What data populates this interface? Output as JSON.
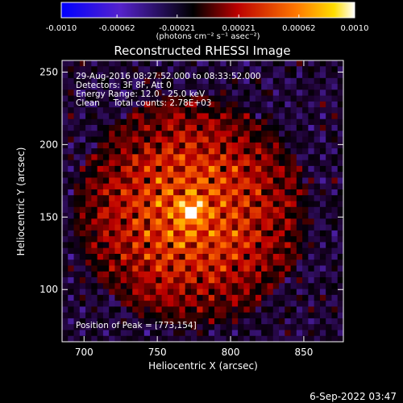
{
  "chart_data": {
    "type": "heatmap",
    "title": "Reconstructed RHESSI Image",
    "xlabel": "Heliocentric X (arcsec)",
    "ylabel": "Heliocentric Y (arcsec)",
    "xlim": [
      685,
      877
    ],
    "ylim": [
      64,
      258
    ],
    "x_ticks": [
      "700",
      "750",
      "800",
      "850"
    ],
    "x_tick_values": [
      700,
      750,
      800,
      850
    ],
    "y_ticks": [
      "100",
      "150",
      "200",
      "250"
    ],
    "y_tick_values": [
      100,
      150,
      200,
      250
    ],
    "colorbar": {
      "range": [
        -0.001,
        0.001
      ],
      "tick_labels": [
        "-0.0010",
        "-0.00062",
        "-0.00021",
        "0.00021",
        "0.00062",
        "0.0010"
      ],
      "tick_values": [
        -0.001,
        -0.00062,
        -0.00021,
        0.00021,
        0.00062,
        0.001
      ],
      "unit_label": "(photons cm⁻² s⁻¹ asec⁻²)",
      "colors": [
        "#0000ff",
        "#6633cc",
        "#000000",
        "#cc0000",
        "#ff6600",
        "#ffdd00",
        "#ffffff"
      ]
    },
    "annotations": [
      "29-Aug-2016 08:27:52.000 to 08:33:52.000",
      "Detectors: 3F 8F, Att 0",
      "Energy Range: 12.0 - 25.0 keV",
      "Clean     Total counts: 2.78E+03"
    ],
    "peak_label": "Position of Peak = [773,154]",
    "peak_position": [
      773,
      154
    ]
  },
  "footer_date": "6-Sep-2022 03:47"
}
